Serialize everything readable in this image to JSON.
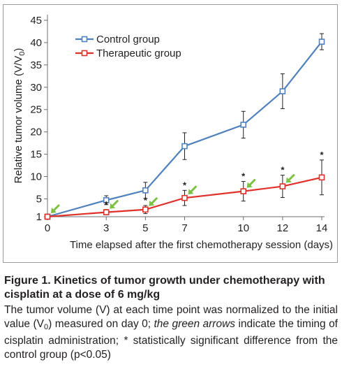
{
  "chart_data": {
    "type": "line",
    "x": [
      0,
      3,
      5,
      7,
      10,
      12,
      14
    ],
    "series": [
      {
        "name": "Control group",
        "color": "#4f81bd",
        "marker": "square",
        "values": [
          1,
          4.7,
          6.9,
          16.8,
          21.6,
          29.1,
          40.2
        ],
        "err": [
          0.2,
          1.0,
          1.8,
          3.0,
          3.0,
          3.9,
          1.8
        ]
      },
      {
        "name": "Therapeutic group",
        "color": "#e0302a",
        "marker": "square",
        "values": [
          1,
          2.0,
          2.6,
          5.2,
          6.7,
          7.8,
          9.8
        ],
        "err": [
          0.2,
          0.6,
          0.9,
          1.7,
          2.2,
          2.5,
          3.9
        ]
      }
    ],
    "significance_marker": "*",
    "significant_x": [
      3,
      5,
      7,
      10,
      12,
      14
    ],
    "arrow_color": "#7cc242",
    "arrow_x": [
      0,
      3,
      5,
      7,
      10,
      12
    ],
    "xlabel": "Time elapsed after the first chemotherapy session (days)",
    "ylabel_main": "Relative tumor volume (V/V",
    "ylabel_sub": "0",
    "ylabel_end": ")",
    "yticks": [
      1,
      5,
      10,
      15,
      20,
      25,
      30,
      35,
      40,
      45
    ],
    "ylim": [
      1,
      45
    ],
    "xticks": [
      0,
      3,
      5,
      7,
      10,
      12,
      14
    ],
    "xlim": [
      0,
      14
    ],
    "grid": false,
    "legend": "top-left"
  },
  "caption": {
    "title": "Figure 1. Kinetics of tumor growth under chemotherapy with cisplatin at a dose of 6 mg/kg",
    "body_1": "The tumor volume (V) at each time point was normalized to the initial value (V",
    "body_sub": "0",
    "body_2": ") measured on day 0; ",
    "body_italic": "the green arrows",
    "body_3": " indicate the timing of cisplatin administration; * statistically significant difference from the control group (p<0.05)"
  }
}
